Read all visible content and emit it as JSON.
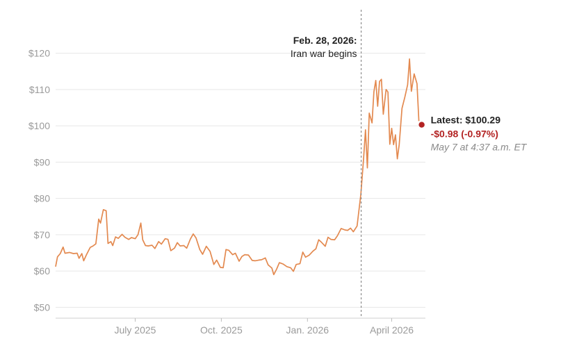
{
  "chart_data": {
    "type": "line",
    "title": "",
    "xlabel": "",
    "ylabel": "",
    "x_range": [
      "2025-04-07",
      "2026-05-07"
    ],
    "ylim": [
      47,
      127
    ],
    "y_ticks": [
      {
        "value": 50,
        "label": "$50"
      },
      {
        "value": 60,
        "label": "$60"
      },
      {
        "value": 70,
        "label": "$70"
      },
      {
        "value": 80,
        "label": "$80"
      },
      {
        "value": 90,
        "label": "$90"
      },
      {
        "value": 100,
        "label": "$100"
      },
      {
        "value": 110,
        "label": "$110"
      },
      {
        "value": 120,
        "label": "$120"
      }
    ],
    "x_ticks": [
      {
        "date": "2025-07-01",
        "label": "July 2025"
      },
      {
        "date": "2025-10-01",
        "label": "Oct. 2025"
      },
      {
        "date": "2026-01-01",
        "label": "Jan. 2026"
      },
      {
        "date": "2026-04-01",
        "label": "April 2026"
      }
    ],
    "grid": true,
    "colors": {
      "line": "#e3894f",
      "marker": "#b32323",
      "grid": "#e6e6e6",
      "annotation_line": "#8c8c8c",
      "negative": "#b32323"
    },
    "series": [
      {
        "points": [
          [
            "2025-04-07",
            61.2
          ],
          [
            "2025-04-09",
            63.9
          ],
          [
            "2025-04-12",
            64.8
          ],
          [
            "2025-04-15",
            66.6
          ],
          [
            "2025-04-17",
            64.9
          ],
          [
            "2025-04-22",
            65.1
          ],
          [
            "2025-04-26",
            64.8
          ],
          [
            "2025-04-30",
            64.9
          ],
          [
            "2025-05-02",
            63.5
          ],
          [
            "2025-05-05",
            64.8
          ],
          [
            "2025-05-07",
            62.8
          ],
          [
            "2025-05-10",
            64.5
          ],
          [
            "2025-05-14",
            66.5
          ],
          [
            "2025-05-17",
            66.9
          ],
          [
            "2025-05-20",
            67.5
          ],
          [
            "2025-05-23",
            74.3
          ],
          [
            "2025-05-25",
            73.2
          ],
          [
            "2025-05-28",
            76.9
          ],
          [
            "2025-05-31",
            76.6
          ],
          [
            "2025-06-02",
            67.6
          ],
          [
            "2025-06-05",
            68.1
          ],
          [
            "2025-06-07",
            67.0
          ],
          [
            "2025-06-10",
            69.4
          ],
          [
            "2025-06-13",
            69.0
          ],
          [
            "2025-06-17",
            70.1
          ],
          [
            "2025-06-20",
            69.3
          ],
          [
            "2025-06-24",
            68.7
          ],
          [
            "2025-06-27",
            69.2
          ],
          [
            "2025-07-01",
            68.9
          ],
          [
            "2025-07-04",
            70.0
          ],
          [
            "2025-07-07",
            73.2
          ],
          [
            "2025-07-09",
            68.6
          ],
          [
            "2025-07-12",
            67.0
          ],
          [
            "2025-07-15",
            66.9
          ],
          [
            "2025-07-19",
            67.1
          ],
          [
            "2025-07-22",
            66.2
          ],
          [
            "2025-07-26",
            68.1
          ],
          [
            "2025-07-29",
            67.4
          ],
          [
            "2025-08-02",
            68.9
          ],
          [
            "2025-08-05",
            68.7
          ],
          [
            "2025-08-08",
            65.6
          ],
          [
            "2025-08-12",
            66.3
          ],
          [
            "2025-08-15",
            67.8
          ],
          [
            "2025-08-18",
            66.9
          ],
          [
            "2025-08-22",
            67.0
          ],
          [
            "2025-08-25",
            66.3
          ],
          [
            "2025-08-29",
            68.8
          ],
          [
            "2025-09-01",
            70.2
          ],
          [
            "2025-09-04",
            69.1
          ],
          [
            "2025-09-08",
            65.9
          ],
          [
            "2025-09-11",
            64.6
          ],
          [
            "2025-09-15",
            66.8
          ],
          [
            "2025-09-19",
            65.4
          ],
          [
            "2025-09-23",
            61.8
          ],
          [
            "2025-09-26",
            63.0
          ],
          [
            "2025-09-30",
            61.0
          ],
          [
            "2025-10-03",
            60.9
          ],
          [
            "2025-10-06",
            65.9
          ],
          [
            "2025-10-09",
            65.7
          ],
          [
            "2025-10-13",
            64.5
          ],
          [
            "2025-10-16",
            64.9
          ],
          [
            "2025-10-20",
            62.7
          ],
          [
            "2025-10-23",
            64.0
          ],
          [
            "2025-10-26",
            64.5
          ],
          [
            "2025-10-30",
            64.4
          ],
          [
            "2025-11-03",
            62.9
          ],
          [
            "2025-11-06",
            62.8
          ],
          [
            "2025-11-10",
            63.0
          ],
          [
            "2025-11-13",
            63.1
          ],
          [
            "2025-11-17",
            63.6
          ],
          [
            "2025-11-20",
            61.7
          ],
          [
            "2025-11-24",
            60.8
          ],
          [
            "2025-11-26",
            59.0
          ],
          [
            "2025-11-29",
            60.5
          ],
          [
            "2025-12-02",
            62.3
          ],
          [
            "2025-12-06",
            61.9
          ],
          [
            "2025-12-10",
            61.2
          ],
          [
            "2025-12-14",
            60.9
          ],
          [
            "2025-12-17",
            59.9
          ],
          [
            "2025-12-20",
            61.8
          ],
          [
            "2025-12-24",
            62.0
          ],
          [
            "2025-12-27",
            65.2
          ],
          [
            "2025-12-30",
            63.8
          ],
          [
            "2026-01-03",
            64.4
          ],
          [
            "2026-01-07",
            65.5
          ],
          [
            "2026-01-10",
            66.1
          ],
          [
            "2026-01-13",
            68.6
          ],
          [
            "2026-01-16",
            67.9
          ],
          [
            "2026-01-20",
            66.8
          ],
          [
            "2026-01-23",
            69.3
          ],
          [
            "2026-01-26",
            68.7
          ],
          [
            "2026-01-30",
            68.6
          ],
          [
            "2026-02-02",
            69.7
          ],
          [
            "2026-02-06",
            71.7
          ],
          [
            "2026-02-10",
            71.3
          ],
          [
            "2026-02-13",
            71.2
          ],
          [
            "2026-02-16",
            71.8
          ],
          [
            "2026-02-19",
            70.8
          ],
          [
            "2026-02-23",
            72.4
          ],
          [
            "2026-02-27",
            81.1
          ],
          [
            "2026-03-02",
            91.1
          ],
          [
            "2026-03-04",
            98.9
          ],
          [
            "2026-03-06",
            88.4
          ],
          [
            "2026-03-08",
            103.5
          ],
          [
            "2026-03-11",
            100.8
          ],
          [
            "2026-03-13",
            109.4
          ],
          [
            "2026-03-15",
            112.5
          ],
          [
            "2026-03-17",
            105.4
          ],
          [
            "2026-03-19",
            112.2
          ],
          [
            "2026-03-21",
            112.8
          ],
          [
            "2026-03-23",
            103.2
          ],
          [
            "2026-03-26",
            110.0
          ],
          [
            "2026-03-28",
            109.3
          ],
          [
            "2026-03-30",
            94.9
          ],
          [
            "2026-04-01",
            99.3
          ],
          [
            "2026-04-03",
            94.8
          ],
          [
            "2026-04-05",
            97.5
          ],
          [
            "2026-04-07",
            90.9
          ],
          [
            "2026-04-09",
            94.8
          ],
          [
            "2026-04-12",
            104.8
          ],
          [
            "2026-04-15",
            107.9
          ],
          [
            "2026-04-18",
            111.3
          ],
          [
            "2026-04-20",
            118.4
          ],
          [
            "2026-04-22",
            109.5
          ],
          [
            "2026-04-25",
            114.3
          ],
          [
            "2026-04-28",
            111.6
          ],
          [
            "2026-04-30",
            101.3
          ]
        ]
      }
    ],
    "latest": {
      "date": "2026-05-03",
      "value": 100.29
    }
  },
  "annotations": {
    "event": {
      "date": "2026-02-27",
      "title": "Feb. 28, 2026:",
      "subtitle": "Iran war begins"
    },
    "latest": {
      "label": "Latest: $100.29",
      "change": "-$0.98 (-0.97%)",
      "timestamp": "May 7 at 4:37 a.m. ET"
    }
  }
}
